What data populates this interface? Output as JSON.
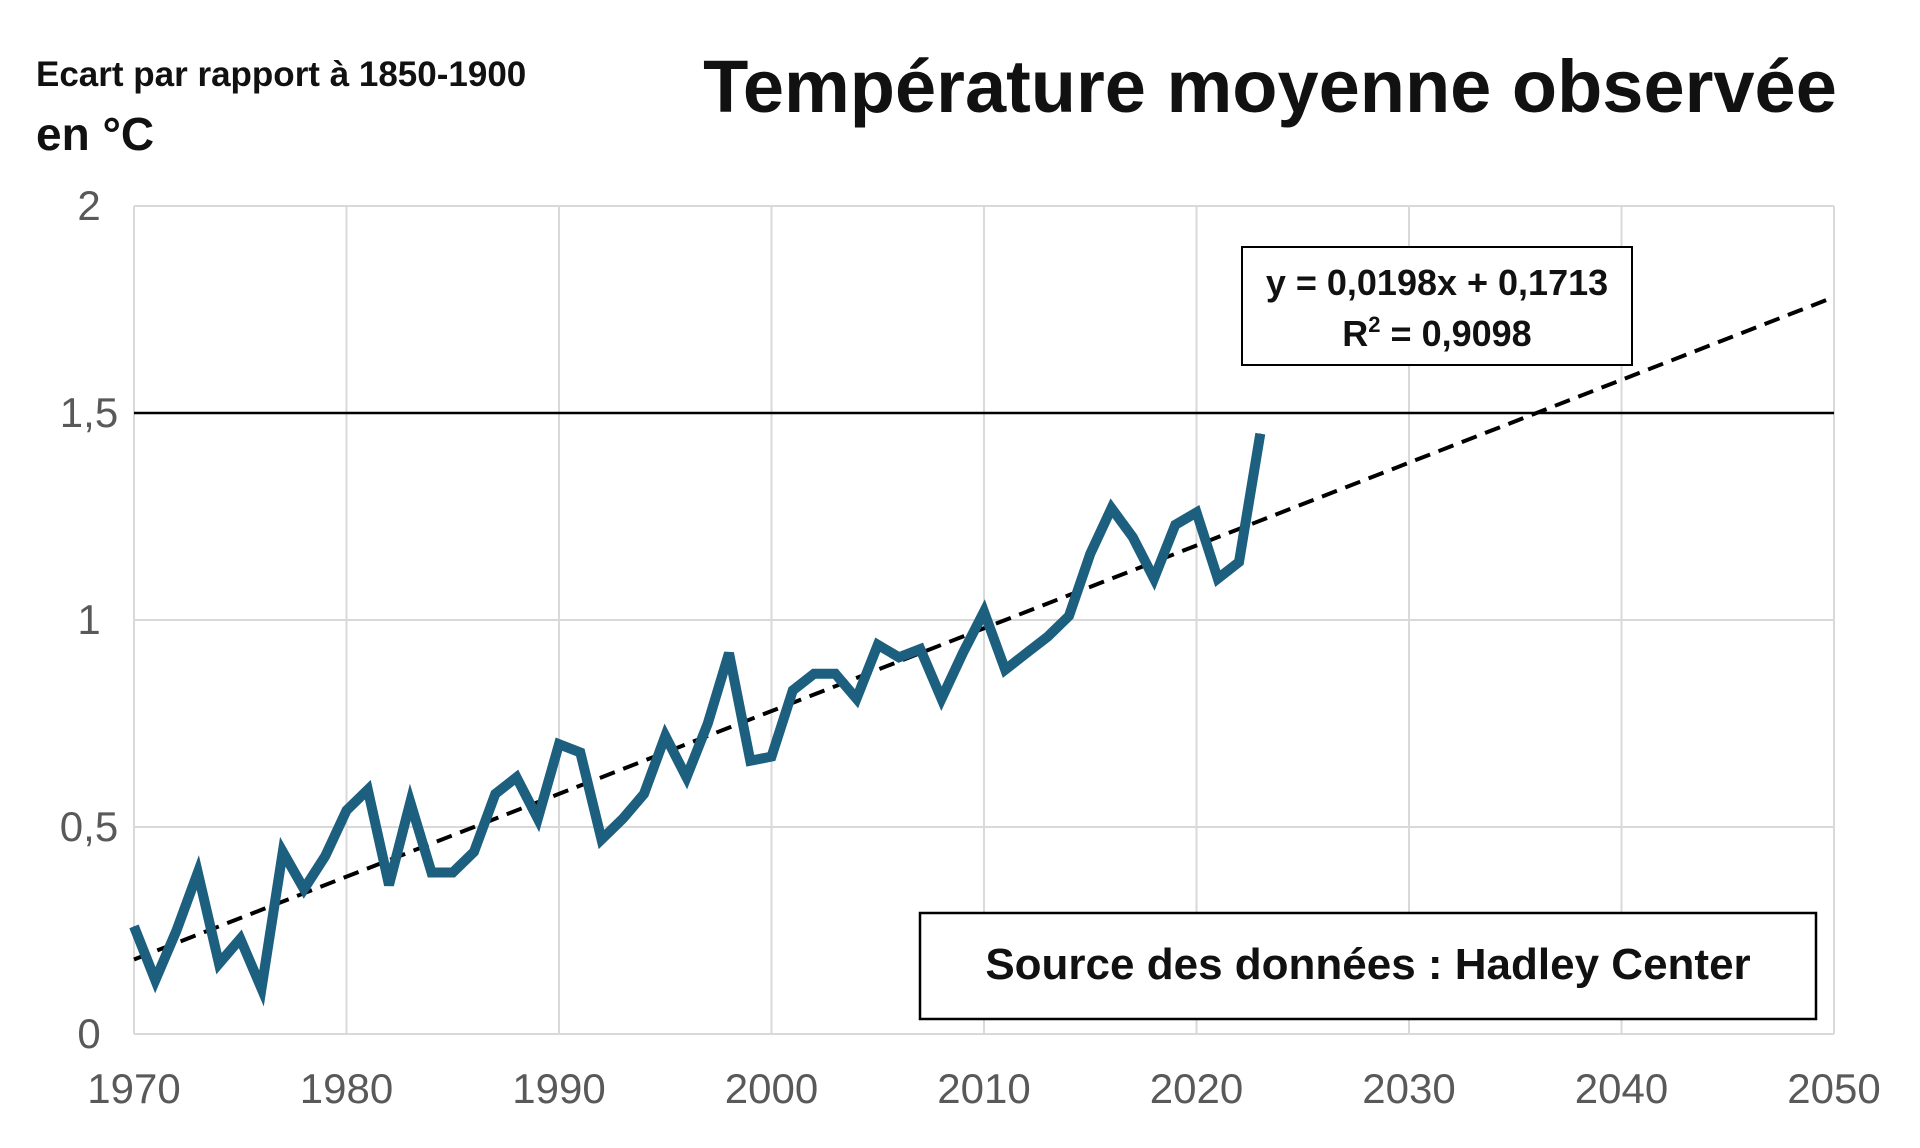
{
  "chart_data": {
    "type": "line",
    "title": "Température moyenne observée",
    "ylabel_line1": "Ecart par rapport à 1850-1900",
    "ylabel_line2": "en °C",
    "xlabel": "",
    "xlim": [
      1970,
      2050
    ],
    "ylim": [
      0,
      2
    ],
    "x_ticks": [
      1970,
      1980,
      1990,
      2000,
      2010,
      2020,
      2030,
      2040,
      2050
    ],
    "x_tick_labels": [
      "1970",
      "1980",
      "1990",
      "2000",
      "2010",
      "2020",
      "2030",
      "2040",
      "2050"
    ],
    "y_ticks": [
      0,
      0.5,
      1,
      1.5,
      2
    ],
    "y_tick_labels": [
      "0",
      "0,5",
      "1",
      "1,5",
      "2"
    ],
    "grid": true,
    "reference_line": {
      "y": 1.5,
      "color": "#000000"
    },
    "series": [
      {
        "name": "Température moyenne observée",
        "color": "#1c5f7e",
        "x": [
          1970,
          1971,
          1972,
          1973,
          1974,
          1975,
          1976,
          1977,
          1978,
          1979,
          1980,
          1981,
          1982,
          1983,
          1984,
          1985,
          1986,
          1987,
          1988,
          1989,
          1990,
          1991,
          1992,
          1993,
          1994,
          1995,
          1996,
          1997,
          1998,
          1999,
          2000,
          2001,
          2002,
          2003,
          2004,
          2005,
          2006,
          2007,
          2008,
          2009,
          2010,
          2011,
          2012,
          2013,
          2014,
          2015,
          2016,
          2017,
          2018,
          2019,
          2020,
          2021,
          2022,
          2023
        ],
        "values": [
          0.26,
          0.13,
          0.25,
          0.39,
          0.17,
          0.23,
          0.11,
          0.44,
          0.35,
          0.43,
          0.54,
          0.59,
          0.36,
          0.56,
          0.39,
          0.39,
          0.44,
          0.58,
          0.62,
          0.52,
          0.7,
          0.68,
          0.47,
          0.52,
          0.58,
          0.72,
          0.62,
          0.75,
          0.92,
          0.66,
          0.67,
          0.83,
          0.87,
          0.87,
          0.81,
          0.94,
          0.91,
          0.93,
          0.81,
          0.92,
          1.02,
          0.88,
          0.92,
          0.96,
          1.01,
          1.16,
          1.27,
          1.2,
          1.1,
          1.23,
          1.26,
          1.1,
          1.14,
          1.45
        ]
      }
    ],
    "trendline": {
      "type": "linear",
      "style": "dashed",
      "color": "#000000",
      "x_start": 1970,
      "x_end": 2050,
      "y_start": 0.18,
      "y_end": 1.78,
      "equation": "y = 0,0198x + 0,1713",
      "r2_label": "R",
      "r2_sup": "2",
      "r2_value": " = 0,9098"
    },
    "source_note": "Source des données : Hadley Center"
  }
}
